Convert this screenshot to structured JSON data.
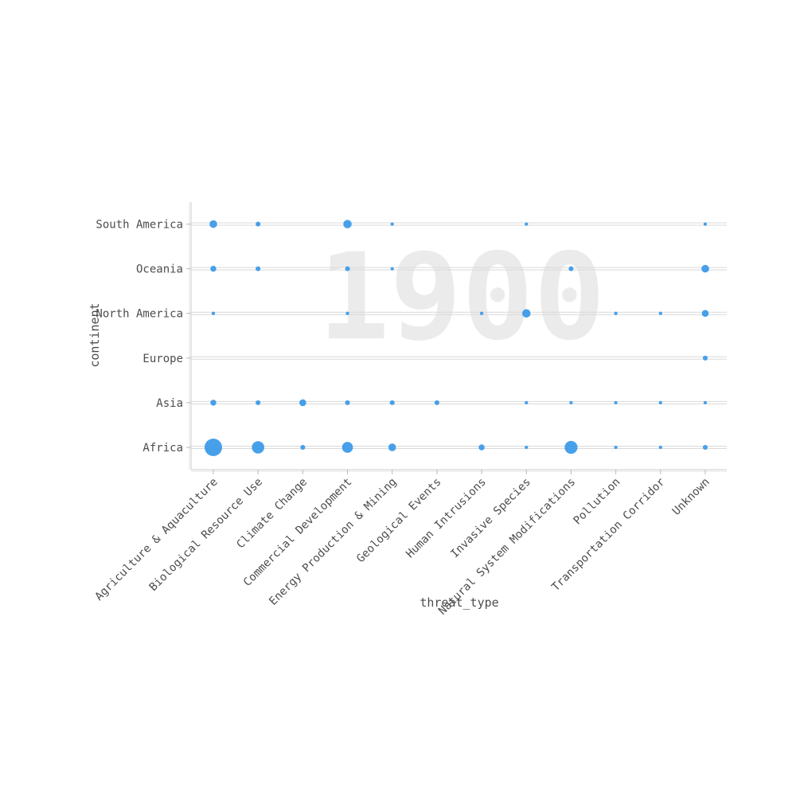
{
  "chart_data": {
    "type": "scatter",
    "xlabel": "threat_type",
    "ylabel": "continent",
    "watermark": "1900",
    "x_categories": [
      "Agriculture & Aquaculture",
      "Biological Resource Use",
      "Climate Change",
      "Commercial Development",
      "Energy Production & Mining",
      "Geological Events",
      "Human Intrusions",
      "Invasive Species",
      "Natural System Modifications",
      "Pollution",
      "Transportation Corridor",
      "Unknown"
    ],
    "y_categories": [
      "Africa",
      "Asia",
      "Europe",
      "North America",
      "Oceania",
      "South America"
    ],
    "point_color": "#3d9be9",
    "grid": true,
    "size_encoding": "count",
    "points": [
      {
        "x": "Agriculture & Aquaculture",
        "y": "Africa",
        "size": 26
      },
      {
        "x": "Biological Resource Use",
        "y": "Africa",
        "size": 13
      },
      {
        "x": "Climate Change",
        "y": "Africa",
        "size": 2
      },
      {
        "x": "Commercial Development",
        "y": "Africa",
        "size": 10
      },
      {
        "x": "Energy Production & Mining",
        "y": "Africa",
        "size": 5
      },
      {
        "x": "Human Intrusions",
        "y": "Africa",
        "size": 3
      },
      {
        "x": "Invasive Species",
        "y": "Africa",
        "size": 1
      },
      {
        "x": "Natural System Modifications",
        "y": "Africa",
        "size": 14
      },
      {
        "x": "Pollution",
        "y": "Africa",
        "size": 1
      },
      {
        "x": "Transportation Corridor",
        "y": "Africa",
        "size": 1
      },
      {
        "x": "Unknown",
        "y": "Africa",
        "size": 2
      },
      {
        "x": "Agriculture & Aquaculture",
        "y": "Asia",
        "size": 3
      },
      {
        "x": "Biological Resource Use",
        "y": "Asia",
        "size": 2
      },
      {
        "x": "Climate Change",
        "y": "Asia",
        "size": 4
      },
      {
        "x": "Commercial Development",
        "y": "Asia",
        "size": 2
      },
      {
        "x": "Energy Production & Mining",
        "y": "Asia",
        "size": 2
      },
      {
        "x": "Geological Events",
        "y": "Asia",
        "size": 2
      },
      {
        "x": "Invasive Species",
        "y": "Asia",
        "size": 1
      },
      {
        "x": "Natural System Modifications",
        "y": "Asia",
        "size": 1
      },
      {
        "x": "Pollution",
        "y": "Asia",
        "size": 1
      },
      {
        "x": "Transportation Corridor",
        "y": "Asia",
        "size": 1
      },
      {
        "x": "Unknown",
        "y": "Asia",
        "size": 1
      },
      {
        "x": "Unknown",
        "y": "Europe",
        "size": 2
      },
      {
        "x": "Agriculture & Aquaculture",
        "y": "North America",
        "size": 1
      },
      {
        "x": "Commercial Development",
        "y": "North America",
        "size": 1
      },
      {
        "x": "Human Intrusions",
        "y": "North America",
        "size": 1
      },
      {
        "x": "Invasive Species",
        "y": "North America",
        "size": 6
      },
      {
        "x": "Pollution",
        "y": "North America",
        "size": 1
      },
      {
        "x": "Transportation Corridor",
        "y": "North America",
        "size": 1
      },
      {
        "x": "Unknown",
        "y": "North America",
        "size": 4
      },
      {
        "x": "Agriculture & Aquaculture",
        "y": "Oceania",
        "size": 3
      },
      {
        "x": "Biological Resource Use",
        "y": "Oceania",
        "size": 2
      },
      {
        "x": "Commercial Development",
        "y": "Oceania",
        "size": 2
      },
      {
        "x": "Energy Production & Mining",
        "y": "Oceania",
        "size": 1
      },
      {
        "x": "Natural System Modifications",
        "y": "Oceania",
        "size": 2
      },
      {
        "x": "Unknown",
        "y": "Oceania",
        "size": 5
      },
      {
        "x": "Agriculture & Aquaculture",
        "y": "South America",
        "size": 5
      },
      {
        "x": "Biological Resource Use",
        "y": "South America",
        "size": 2
      },
      {
        "x": "Commercial Development",
        "y": "South America",
        "size": 6
      },
      {
        "x": "Energy Production & Mining",
        "y": "South America",
        "size": 1
      },
      {
        "x": "Invasive Species",
        "y": "South America",
        "size": 1
      },
      {
        "x": "Unknown",
        "y": "South America",
        "size": 1
      }
    ]
  }
}
